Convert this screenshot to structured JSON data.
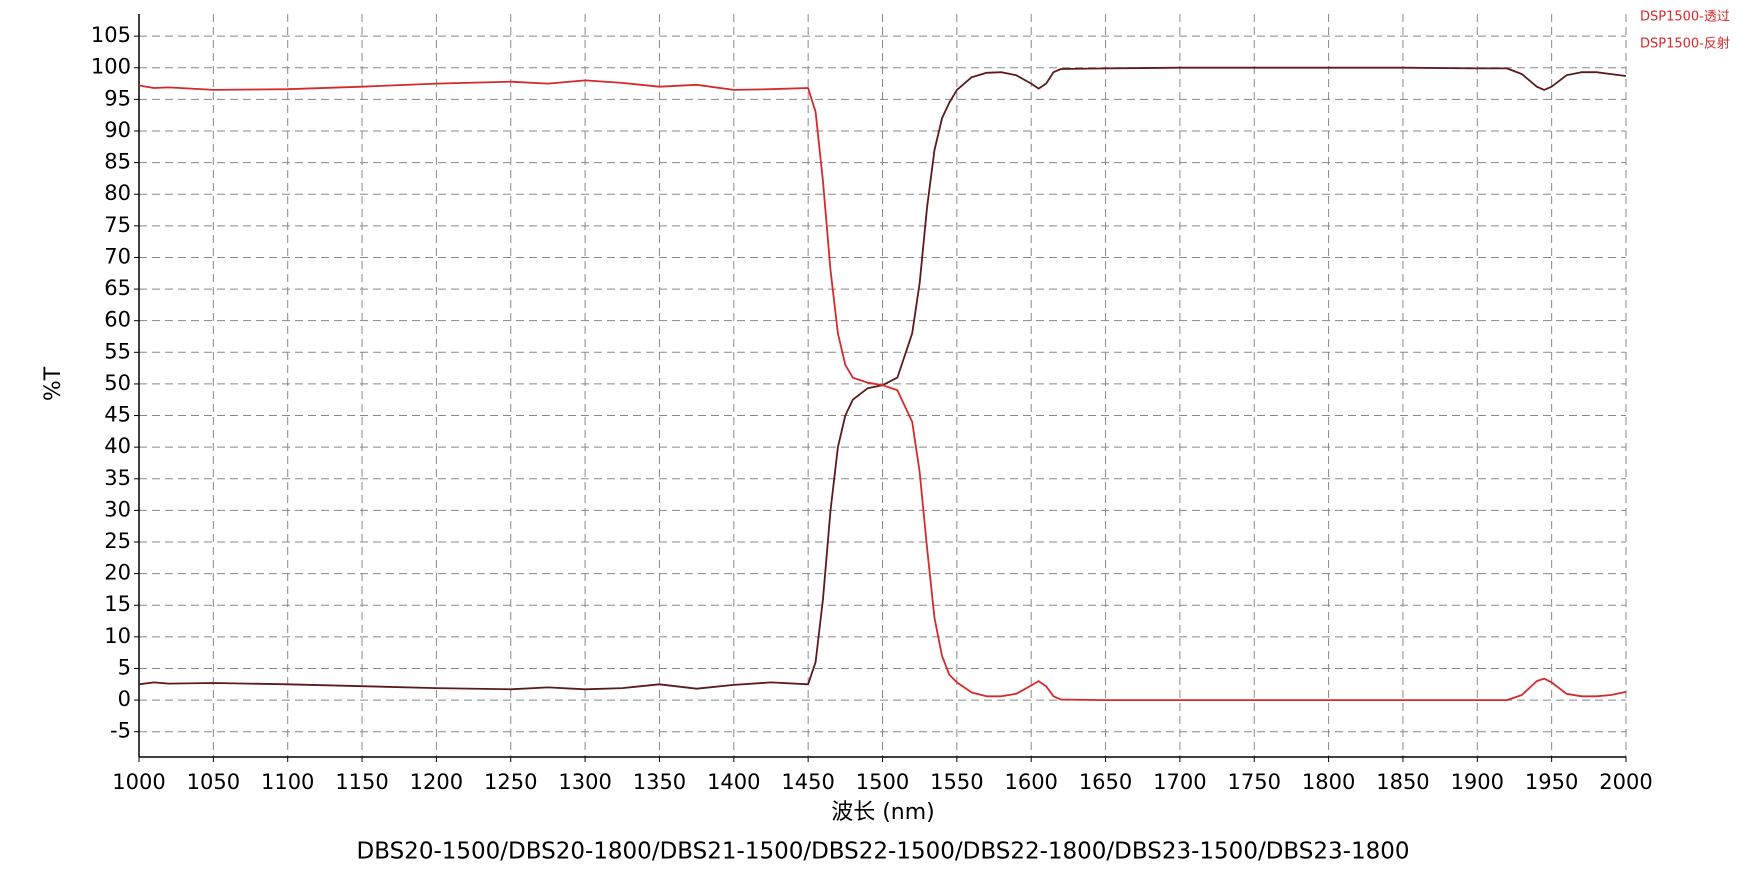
{
  "chart_data": {
    "type": "line",
    "title": "DBS20-1500/DBS20-1800/DBS21-1500/DBS22-1500/DBS22-1800/DBS23-1500/DBS23-1800",
    "xlabel": "波长 (nm)",
    "ylabel": "%T",
    "x": [
      1000,
      1010,
      1020,
      1050,
      1100,
      1150,
      1200,
      1250,
      1275,
      1300,
      1325,
      1350,
      1375,
      1400,
      1425,
      1450,
      1455,
      1460,
      1465,
      1470,
      1475,
      1480,
      1490,
      1500,
      1510,
      1520,
      1525,
      1530,
      1535,
      1540,
      1545,
      1550,
      1560,
      1570,
      1580,
      1590,
      1600,
      1605,
      1610,
      1615,
      1620,
      1650,
      1700,
      1750,
      1800,
      1850,
      1900,
      1920,
      1930,
      1940,
      1945,
      1950,
      1960,
      1970,
      1980,
      1990,
      2000
    ],
    "series": [
      {
        "name": "DSP1500-透过",
        "color": "#5c1a1a",
        "values": [
          2.5,
          2.8,
          2.6,
          2.7,
          2.5,
          2.2,
          1.9,
          1.7,
          2.0,
          1.7,
          1.9,
          2.5,
          1.8,
          2.4,
          2.8,
          2.5,
          6,
          16,
          30,
          40,
          45,
          47.5,
          49.3,
          49.8,
          51,
          58,
          66,
          78,
          87,
          92,
          94.5,
          96.5,
          98.5,
          99.2,
          99.3,
          98.8,
          97.5,
          96.7,
          97.5,
          99.3,
          99.8,
          99.9,
          100,
          100,
          100,
          100,
          99.9,
          99.9,
          99,
          97,
          96.5,
          97,
          98.8,
          99.3,
          99.3,
          99,
          98.7
        ]
      },
      {
        "name": "DSP1500-反射",
        "color": "#d42a2a",
        "values": [
          97.2,
          96.8,
          96.9,
          96.5,
          96.6,
          97,
          97.5,
          97.8,
          97.5,
          98,
          97.6,
          97,
          97.3,
          96.5,
          96.6,
          96.8,
          93,
          82,
          68,
          58,
          53,
          51,
          50.2,
          49.8,
          49,
          44,
          36,
          24,
          13,
          7,
          4,
          2.8,
          1.2,
          0.6,
          0.6,
          1.0,
          2.3,
          3.0,
          2.2,
          0.6,
          0.1,
          0,
          0,
          0,
          0,
          0,
          0,
          0,
          0.8,
          3,
          3.4,
          2.8,
          1.0,
          0.6,
          0.6,
          0.8,
          1.3
        ]
      }
    ],
    "xlim": [
      1000,
      2000
    ],
    "xticks": [
      1000,
      1050,
      1100,
      1150,
      1200,
      1250,
      1300,
      1350,
      1400,
      1450,
      1500,
      1550,
      1600,
      1650,
      1700,
      1750,
      1800,
      1850,
      1900,
      1950,
      2000
    ],
    "ylim": [
      -9,
      108.5
    ],
    "yticks": [
      -5,
      0,
      5,
      10,
      15,
      20,
      25,
      30,
      35,
      40,
      45,
      50,
      55,
      60,
      65,
      70,
      75,
      80,
      85,
      90,
      95,
      100,
      105
    ],
    "grid": true,
    "legend": "upper right",
    "legend_text_color": "#d42a2a"
  }
}
